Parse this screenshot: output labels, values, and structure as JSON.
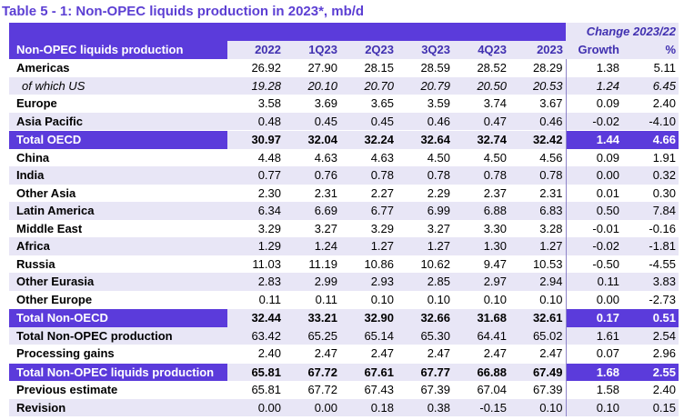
{
  "title": "Table 5 - 1: Non-OPEC liquids production in 2023*, mb/d",
  "change_header": "Change 2023/22",
  "columns": [
    "Non-OPEC liquids production",
    "2022",
    "1Q23",
    "2Q23",
    "3Q23",
    "4Q23",
    "2023",
    "Growth",
    "%"
  ],
  "rows": [
    {
      "label": "Americas",
      "values": [
        "26.92",
        "27.90",
        "28.15",
        "28.59",
        "28.52",
        "28.29",
        "1.38",
        "5.11"
      ],
      "style": "bold"
    },
    {
      "label": "of which US",
      "values": [
        "19.28",
        "20.10",
        "20.70",
        "20.79",
        "20.50",
        "20.53",
        "1.24",
        "6.45"
      ],
      "style": "italic"
    },
    {
      "label": "Europe",
      "values": [
        "3.58",
        "3.69",
        "3.65",
        "3.59",
        "3.74",
        "3.67",
        "0.09",
        "2.40"
      ],
      "style": "bold"
    },
    {
      "label": "Asia Pacific",
      "values": [
        "0.48",
        "0.45",
        "0.45",
        "0.46",
        "0.47",
        "0.46",
        "-0.02",
        "-4.10"
      ],
      "style": "bold"
    },
    {
      "label": "Total OECD",
      "values": [
        "30.97",
        "32.04",
        "32.24",
        "32.64",
        "32.74",
        "32.42",
        "1.44",
        "4.66"
      ],
      "style": "total"
    },
    {
      "label": "China",
      "values": [
        "4.48",
        "4.63",
        "4.63",
        "4.50",
        "4.50",
        "4.56",
        "0.09",
        "1.91"
      ],
      "style": "bold"
    },
    {
      "label": "India",
      "values": [
        "0.77",
        "0.76",
        "0.78",
        "0.78",
        "0.78",
        "0.78",
        "0.00",
        "0.32"
      ],
      "style": "bold"
    },
    {
      "label": "Other Asia",
      "values": [
        "2.30",
        "2.31",
        "2.27",
        "2.29",
        "2.37",
        "2.31",
        "0.01",
        "0.30"
      ],
      "style": "bold"
    },
    {
      "label": "Latin America",
      "values": [
        "6.34",
        "6.69",
        "6.77",
        "6.99",
        "6.88",
        "6.83",
        "0.50",
        "7.84"
      ],
      "style": "bold"
    },
    {
      "label": "Middle East",
      "values": [
        "3.29",
        "3.27",
        "3.29",
        "3.27",
        "3.30",
        "3.28",
        "-0.01",
        "-0.16"
      ],
      "style": "bold"
    },
    {
      "label": "Africa",
      "values": [
        "1.29",
        "1.24",
        "1.27",
        "1.27",
        "1.30",
        "1.27",
        "-0.02",
        "-1.81"
      ],
      "style": "bold"
    },
    {
      "label": "Russia",
      "values": [
        "11.03",
        "11.19",
        "10.86",
        "10.62",
        "9.47",
        "10.53",
        "-0.50",
        "-4.55"
      ],
      "style": "bold"
    },
    {
      "label": "Other Eurasia",
      "values": [
        "2.83",
        "2.99",
        "2.93",
        "2.85",
        "2.97",
        "2.94",
        "0.11",
        "3.83"
      ],
      "style": "bold"
    },
    {
      "label": "Other Europe",
      "values": [
        "0.11",
        "0.11",
        "0.10",
        "0.10",
        "0.10",
        "0.10",
        "0.00",
        "-2.73"
      ],
      "style": "bold"
    },
    {
      "label": "Total Non-OECD",
      "values": [
        "32.44",
        "33.21",
        "32.90",
        "32.66",
        "31.68",
        "32.61",
        "0.17",
        "0.51"
      ],
      "style": "total"
    },
    {
      "label": "Total Non-OPEC production",
      "values": [
        "63.42",
        "65.25",
        "65.14",
        "65.30",
        "64.41",
        "65.02",
        "1.61",
        "2.54"
      ],
      "style": "bold"
    },
    {
      "label": "Processing gains",
      "values": [
        "2.40",
        "2.47",
        "2.47",
        "2.47",
        "2.47",
        "2.47",
        "0.07",
        "2.96"
      ],
      "style": "bold"
    },
    {
      "label": "Total Non-OPEC liquids production",
      "values": [
        "65.81",
        "67.72",
        "67.61",
        "67.77",
        "66.88",
        "67.49",
        "1.68",
        "2.55"
      ],
      "style": "total"
    },
    {
      "label": "Previous estimate",
      "values": [
        "65.81",
        "67.72",
        "67.43",
        "67.39",
        "67.04",
        "67.39",
        "1.58",
        "2.40"
      ],
      "style": "bold"
    },
    {
      "label": "Revision",
      "values": [
        "0.00",
        "0.00",
        "0.18",
        "0.38",
        "-0.15",
        "0.10",
        "0.10",
        "0.15"
      ],
      "style": "bold"
    }
  ],
  "colors": {
    "accent": "#5b3bdb",
    "band": "#e8e6f6",
    "title": "#5c3fd3"
  }
}
